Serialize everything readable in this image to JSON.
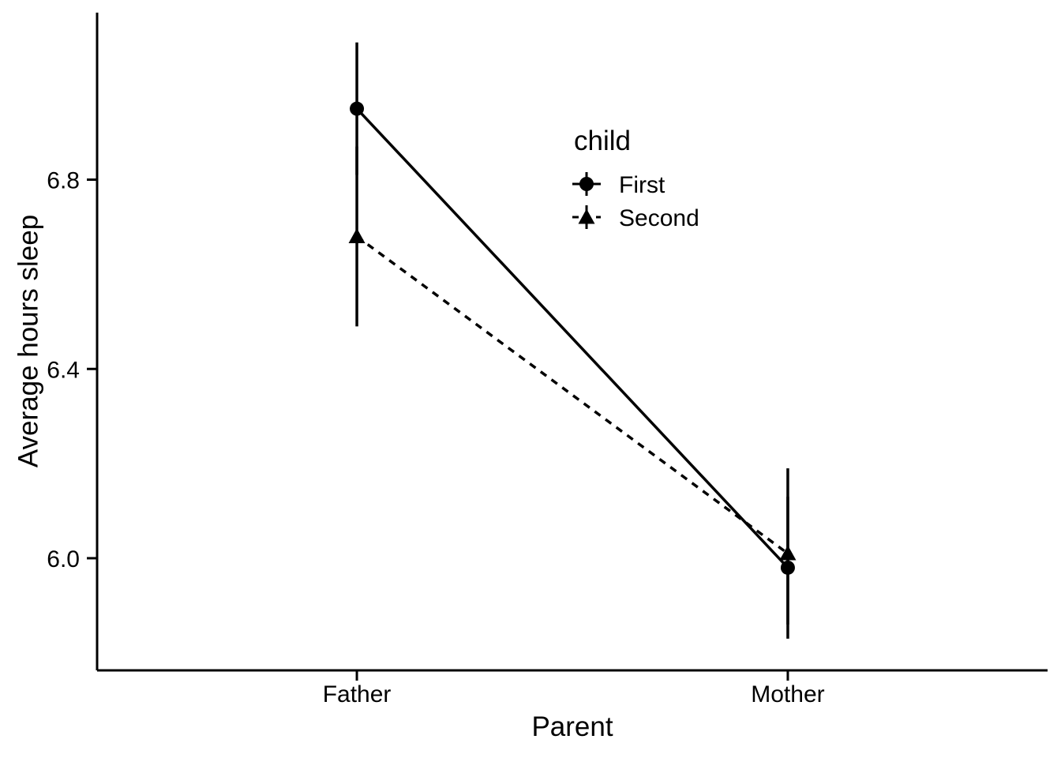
{
  "page": {
    "background": "#FFFFFF",
    "foreground": "#000000"
  },
  "chart_data": {
    "type": "line",
    "title": "",
    "xlabel": "Parent",
    "ylabel": "Average hours sleep",
    "categories": [
      "Father",
      "Mother"
    ],
    "x_tick_labels": [
      "Father",
      "Mother"
    ],
    "y_ticks": [
      6.8,
      6.4,
      6.0
    ],
    "y_tick_labels": [
      "6.8",
      "6.4",
      "6.0"
    ],
    "ylim": [
      5.763,
      7.153
    ],
    "grid": false,
    "legend": {
      "title": "child",
      "position": "inside-upper-middle",
      "entries": [
        "First",
        "Second"
      ]
    },
    "series": [
      {
        "name": "First",
        "marker": "circle",
        "line_style": "solid",
        "values": [
          6.95,
          5.98
        ],
        "ci_lower": [
          6.81,
          5.83
        ],
        "ci_upper": [
          7.09,
          6.13
        ]
      },
      {
        "name": "Second",
        "marker": "triangle",
        "line_style": "dashed",
        "values": [
          6.68,
          6.01
        ],
        "ci_lower": [
          6.49,
          5.86
        ],
        "ci_upper": [
          6.87,
          6.19
        ]
      }
    ],
    "color": "#000000",
    "background": "#FFFFFF"
  }
}
